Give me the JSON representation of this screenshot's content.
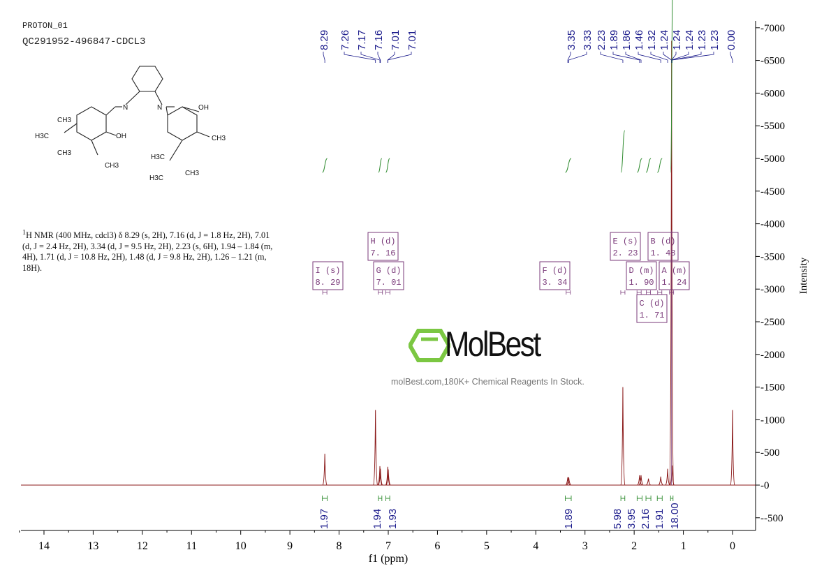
{
  "header": {
    "experiment": "PROTON_01",
    "sample": "QC291952-496847-CDCL3"
  },
  "nmr_text": {
    "prefix": "1",
    "body": "H NMR (400 MHz, cdcl3) δ 8.29 (s, 2H), 7.16 (d, J = 1.8 Hz, 2H), 7.01 (d, J = 2.4 Hz, 2H), 3.34 (d, J = 9.5 Hz, 2H), 2.23 (s, 6H), 1.94 – 1.84 (m, 4H), 1.71 (d, J = 10.8 Hz, 2H), 1.48 (d, J = 9.8 Hz, 2H), 1.26 – 1.21 (m, 18H)."
  },
  "structure": {
    "labels": [
      "N",
      "N",
      "OH",
      "OH",
      "CH3",
      "H3C",
      "CH3",
      "CH3",
      "H3C",
      "CH3",
      "CH3",
      "H3C"
    ]
  },
  "watermark": {
    "logo": "MolBest",
    "tagline": "molBest.com,180K+ Chemical Reagents In Stock."
  },
  "chart_data": {
    "type": "line",
    "xlabel": "f1 (ppm)",
    "ylabel": "Intensity",
    "xlim": [
      14.5,
      -0.45
    ],
    "ylim": [
      -700,
      7100
    ],
    "x_ticks": [
      14,
      13,
      12,
      11,
      10,
      9,
      8,
      7,
      6,
      5,
      4,
      3,
      2,
      1,
      0
    ],
    "y_ticks": [
      7000,
      6500,
      6000,
      5500,
      5000,
      4500,
      4000,
      3500,
      3000,
      2500,
      2000,
      1500,
      1000,
      500,
      0,
      -500
    ],
    "line_color": "#8b1a1a",
    "integral_color": "#2e8b2e",
    "label_color": "#1a1a8b",
    "multiplet_color": "#7a3a7a",
    "peaks": [
      {
        "ppm": 8.29,
        "height": 480
      },
      {
        "ppm": 7.26,
        "height": 1150
      },
      {
        "ppm": 7.17,
        "height": 290
      },
      {
        "ppm": 7.16,
        "height": 250
      },
      {
        "ppm": 7.01,
        "height": 280
      },
      {
        "ppm": 7.0,
        "height": 240
      },
      {
        "ppm": 3.35,
        "height": 120
      },
      {
        "ppm": 3.33,
        "height": 120
      },
      {
        "ppm": 2.23,
        "height": 1500
      },
      {
        "ppm": 1.89,
        "height": 150
      },
      {
        "ppm": 1.86,
        "height": 150
      },
      {
        "ppm": 1.71,
        "height": 100
      },
      {
        "ppm": 1.46,
        "height": 130
      },
      {
        "ppm": 1.32,
        "height": 250
      },
      {
        "ppm": 1.24,
        "height": 6800
      },
      {
        "ppm": 1.23,
        "height": 300
      },
      {
        "ppm": 0.0,
        "height": 1150
      }
    ],
    "peak_labels": [
      "8.29",
      "7.26",
      "7.17",
      "7.16",
      "7.01",
      "7.01",
      "3.35",
      "3.33",
      "2.23",
      "1.89",
      "1.86",
      "1.46",
      "1.32",
      "1.24",
      "1.24",
      "1.24",
      "1.23",
      "1.23",
      "0.00"
    ],
    "peak_label_ppm": [
      8.29,
      7.26,
      7.17,
      7.16,
      7.01,
      7.01,
      3.35,
      3.33,
      2.23,
      1.89,
      1.86,
      1.46,
      1.32,
      1.24,
      1.24,
      1.24,
      1.23,
      1.23,
      0.0
    ],
    "integrals": [
      {
        "from": 8.34,
        "to": 8.24,
        "value": "1.97"
      },
      {
        "from": 7.2,
        "to": 7.13,
        "value": "1.94"
      },
      {
        "from": 7.05,
        "to": 6.97,
        "value": "1.93"
      },
      {
        "from": 3.4,
        "to": 3.28,
        "value": "1.89"
      },
      {
        "from": 2.27,
        "to": 2.19,
        "value": "5.98"
      },
      {
        "from": 1.94,
        "to": 1.84,
        "value": "3.95"
      },
      {
        "from": 1.76,
        "to": 1.66,
        "value": "2.16"
      },
      {
        "from": 1.53,
        "to": 1.43,
        "value": "1.91"
      },
      {
        "from": 1.26,
        "to": 1.21,
        "value": "18.00"
      }
    ],
    "multiplets": [
      {
        "id": "I",
        "type": "s",
        "shift": "8.29",
        "ppm": 8.29
      },
      {
        "id": "H",
        "type": "d",
        "shift": "7.16",
        "ppm": 7.16
      },
      {
        "id": "G",
        "type": "d",
        "shift": "7.01",
        "ppm": 7.01
      },
      {
        "id": "F",
        "type": "d",
        "shift": "3.34",
        "ppm": 3.34
      },
      {
        "id": "E",
        "type": "s",
        "shift": "2.23",
        "ppm": 2.23
      },
      {
        "id": "B",
        "type": "d",
        "shift": "1.48",
        "ppm": 1.48
      },
      {
        "id": "D",
        "type": "m",
        "shift": "1.90",
        "ppm": 1.9
      },
      {
        "id": "A",
        "type": "m",
        "shift": "1.24",
        "ppm": 1.24
      },
      {
        "id": "C",
        "type": "d",
        "shift": "1.71",
        "ppm": 1.71
      }
    ]
  }
}
